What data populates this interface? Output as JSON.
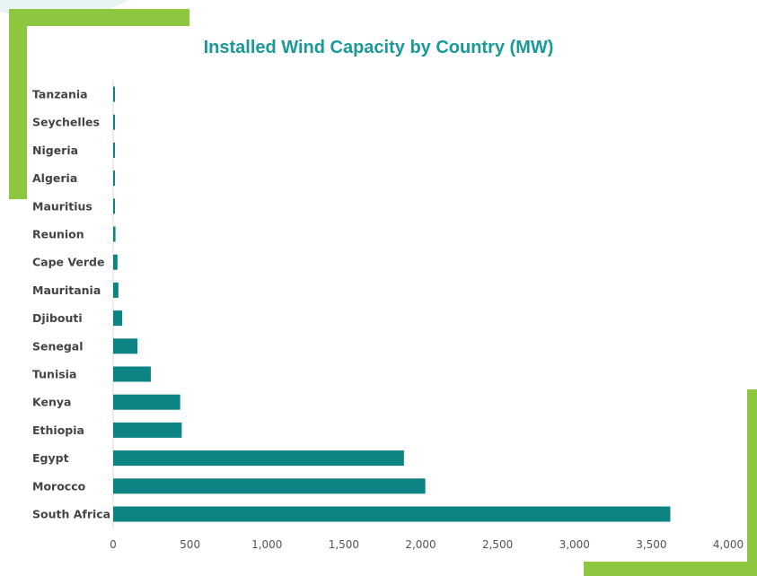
{
  "colors": {
    "title": "#1a9a96",
    "bar": "#0d8384",
    "accent": "#8dc63f",
    "label": "#444444",
    "axis_text": "#555555"
  },
  "chart_data": {
    "type": "bar",
    "orientation": "horizontal",
    "title": "Installed Wind Capacity by Country (MW)",
    "xlabel": "",
    "ylabel": "",
    "xlim": [
      0,
      4000
    ],
    "x_ticks": [
      0,
      500,
      1000,
      1500,
      2000,
      2500,
      3000,
      3500,
      4000
    ],
    "x_tick_labels": [
      "0",
      "500",
      "1,000",
      "1,500",
      "2,000",
      "2,500",
      "3,000",
      "3,500",
      "4,000"
    ],
    "grid": false,
    "legend": "none",
    "categories": [
      "Tanzania",
      "Seychelles",
      "Nigeria",
      "Algeria",
      "Mauritius",
      "Reunion",
      "Cape Verde",
      "Mauritania",
      "Djibouti",
      "Senegal",
      "Tunisia",
      "Kenya",
      "Ethiopia",
      "Egypt",
      "Morocco",
      "South Africa"
    ],
    "values": [
      2,
      6,
      10,
      10,
      11,
      15,
      28,
      34,
      59,
      158,
      245,
      436,
      446,
      1891,
      2030,
      3623
    ]
  }
}
